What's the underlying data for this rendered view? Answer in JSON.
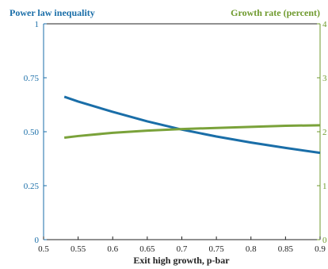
{
  "chart_data": {
    "type": "line",
    "xlabel": "Exit high growth, p-bar",
    "xlim": [
      0.5,
      0.9
    ],
    "x_ticks": [
      "0.5",
      "0.55",
      "0.6",
      "0.65",
      "0.7",
      "0.75",
      "0.8",
      "0.85",
      "0.9"
    ],
    "left_axis": {
      "title": "Power law inequality",
      "ylim": [
        0,
        1
      ],
      "ticks": [
        "0",
        "0.25",
        "0.50",
        "0.75",
        "1"
      ],
      "color": "#1a6ea8"
    },
    "right_axis": {
      "title": "Growth rate (percent)",
      "ylim": [
        0,
        4
      ],
      "ticks": [
        "0",
        "1",
        "2",
        "3",
        "4"
      ],
      "color": "#6f9a2e"
    },
    "series": [
      {
        "axis": "left",
        "color": "#1a6ea8",
        "x": [
          0.53,
          0.55,
          0.6,
          0.65,
          0.7,
          0.75,
          0.8,
          0.85,
          0.9
        ],
        "y": [
          0.662,
          0.64,
          0.592,
          0.548,
          0.51,
          0.478,
          0.45,
          0.425,
          0.402
        ]
      },
      {
        "axis": "right",
        "color": "#7aa23a",
        "x": [
          0.53,
          0.55,
          0.6,
          0.65,
          0.7,
          0.75,
          0.8,
          0.85,
          0.9
        ],
        "y": [
          1.89,
          1.92,
          1.98,
          2.02,
          2.05,
          2.07,
          2.09,
          2.11,
          2.12
        ]
      }
    ],
    "grid": false
  }
}
